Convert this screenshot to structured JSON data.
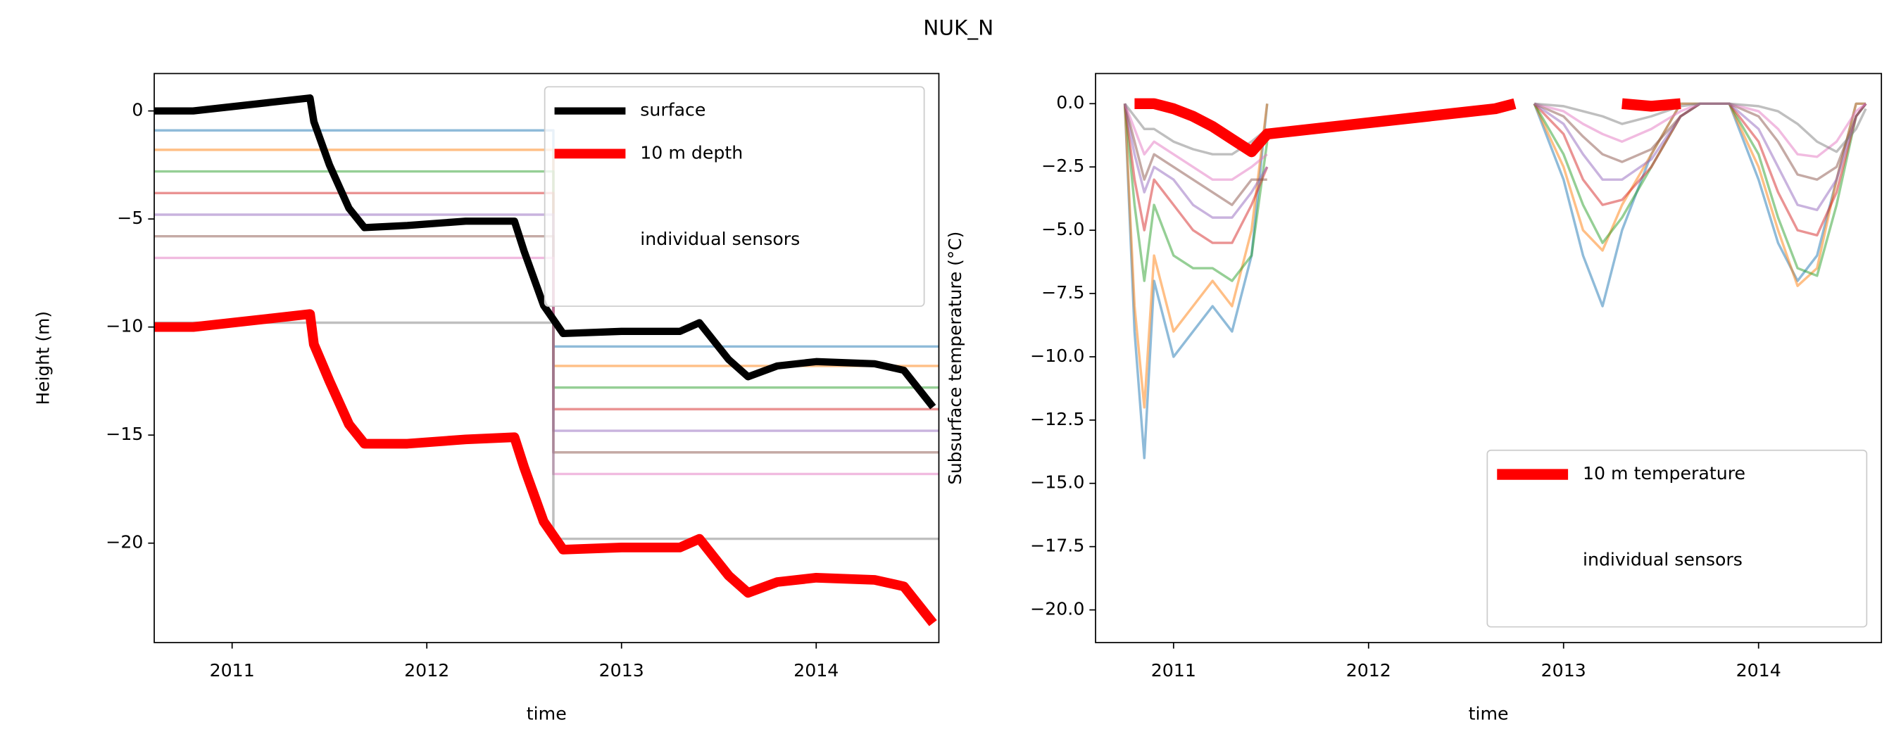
{
  "title": "NUK_N",
  "chart_data": [
    {
      "type": "line",
      "xlabel": "time",
      "ylabel": "Height (m)",
      "xlim": [
        2010.6,
        2014.63
      ],
      "ylim": [
        -24.6,
        1.73
      ],
      "xticks": [
        2011,
        2012,
        2013,
        2014
      ],
      "yticks": [
        {
          "value": 0,
          "label": "0"
        },
        {
          "value": -5,
          "label": "−5"
        },
        {
          "value": -10,
          "label": "−10"
        },
        {
          "value": -15,
          "label": "−15"
        },
        {
          "value": -20,
          "label": "−20"
        }
      ],
      "legend": "upper right",
      "sensors_label": "individual sensors",
      "sensors": [
        {
          "color": "#1f77b4",
          "x": [
            2010.6,
            2012.65,
            2012.65,
            2014.63
          ],
          "values": [
            -0.9,
            -0.9,
            -10.9,
            -10.9
          ]
        },
        {
          "color": "#ff7f0e",
          "x": [
            2010.6,
            2012.65,
            2012.65,
            2014.63
          ],
          "values": [
            -1.8,
            -1.8,
            -11.8,
            -11.8
          ]
        },
        {
          "color": "#2ca02c",
          "x": [
            2010.6,
            2012.65,
            2012.65,
            2014.63
          ],
          "values": [
            -2.8,
            -2.8,
            -12.8,
            -12.8
          ]
        },
        {
          "color": "#d62728",
          "x": [
            2010.6,
            2012.65,
            2012.65,
            2014.63
          ],
          "values": [
            -3.8,
            -3.8,
            -13.8,
            -13.8
          ]
        },
        {
          "color": "#9467bd",
          "x": [
            2010.6,
            2012.65,
            2012.65,
            2014.63
          ],
          "values": [
            -4.8,
            -4.8,
            -14.8,
            -14.8
          ]
        },
        {
          "color": "#8c564b",
          "x": [
            2010.6,
            2012.65,
            2012.65,
            2014.63
          ],
          "values": [
            -5.8,
            -5.8,
            -15.8,
            -15.8
          ]
        },
        {
          "color": "#e377c2",
          "x": [
            2010.6,
            2012.65,
            2012.65,
            2014.63
          ],
          "values": [
            -6.8,
            -6.8,
            -16.8,
            -16.8
          ]
        },
        {
          "color": "#7f7f7f",
          "x": [
            2010.6,
            2012.65,
            2012.65,
            2014.63
          ],
          "values": [
            -9.8,
            -9.8,
            -19.8,
            -19.8
          ]
        }
      ],
      "series": [
        {
          "name": "surface",
          "color": "#000000",
          "x": [
            2010.6,
            2010.8,
            2011.0,
            2011.2,
            2011.4,
            2011.42,
            2011.5,
            2011.6,
            2011.68,
            2011.9,
            2012.2,
            2012.45,
            2012.5,
            2012.6,
            2012.7,
            2013.0,
            2013.3,
            2013.4,
            2013.55,
            2013.65,
            2013.8,
            2014.0,
            2014.3,
            2014.45,
            2014.6
          ],
          "values": [
            0,
            0,
            0.2,
            0.4,
            0.6,
            -0.5,
            -2.5,
            -4.5,
            -5.4,
            -5.3,
            -5.1,
            -5.1,
            -6.5,
            -9,
            -10.3,
            -10.2,
            -10.2,
            -9.8,
            -11.5,
            -12.3,
            -11.8,
            -11.6,
            -11.7,
            -12,
            -13.7
          ]
        },
        {
          "name": "10 m depth",
          "color": "#ff0000",
          "x": [
            2010.6,
            2010.8,
            2011.0,
            2011.2,
            2011.4,
            2011.42,
            2011.5,
            2011.6,
            2011.68,
            2011.9,
            2012.2,
            2012.45,
            2012.5,
            2012.6,
            2012.7,
            2013.0,
            2013.3,
            2013.4,
            2013.55,
            2013.65,
            2013.8,
            2014.0,
            2014.3,
            2014.45,
            2014.6
          ],
          "values": [
            -10,
            -10,
            -9.8,
            -9.6,
            -9.4,
            -10.8,
            -12.5,
            -14.5,
            -15.4,
            -15.4,
            -15.2,
            -15.1,
            -16.5,
            -19,
            -20.3,
            -20.2,
            -20.2,
            -19.8,
            -21.5,
            -22.3,
            -21.8,
            -21.6,
            -21.7,
            -22,
            -23.7
          ]
        }
      ]
    },
    {
      "type": "line",
      "xlabel": "time",
      "ylabel": "Subsurface temperature (°C)",
      "xlim": [
        2010.6,
        2014.63
      ],
      "ylim": [
        -21.29,
        1.19
      ],
      "xticks": [
        2011,
        2012,
        2013,
        2014
      ],
      "yticks": [
        {
          "value": 0,
          "label": "0.0"
        },
        {
          "value": -2.5,
          "label": "−2.5"
        },
        {
          "value": -5,
          "label": "−5.0"
        },
        {
          "value": -7.5,
          "label": "−7.5"
        },
        {
          "value": -10,
          "label": "−10.0"
        },
        {
          "value": -12.5,
          "label": "−12.5"
        },
        {
          "value": -15,
          "label": "−15.0"
        },
        {
          "value": -17.5,
          "label": "−17.5"
        },
        {
          "value": -20,
          "label": "−20.0"
        }
      ],
      "legend": "lower right",
      "sensors_label": "individual sensors",
      "x": [
        2010.75,
        2010.8,
        2010.85,
        2010.9,
        2011.0,
        2011.1,
        2011.2,
        2011.3,
        2011.4,
        2011.48,
        2012.65,
        2012.75,
        2012.85,
        2013.0,
        2013.1,
        2013.2,
        2013.3,
        2013.45,
        2013.6,
        2013.7,
        2013.85,
        2014.0,
        2014.1,
        2014.2,
        2014.3,
        2014.4,
        2014.5,
        2014.55
      ],
      "sensors": [
        {
          "color": "#1f77b4",
          "values": [
            0,
            -9,
            -14,
            -7,
            -10,
            -9,
            -8,
            -9,
            -6,
            0,
            null,
            null,
            0,
            -3,
            -6,
            -8,
            -5,
            -2,
            0,
            0,
            0,
            -3,
            -5.5,
            -7,
            -6,
            -3,
            0,
            0
          ]
        },
        {
          "color": "#ff7f0e",
          "values": [
            0,
            -8,
            -12,
            -6,
            -9,
            -8,
            -7,
            -8,
            -5,
            0,
            null,
            null,
            0,
            -2.5,
            -5,
            -5.8,
            -4,
            -2,
            0,
            0,
            0,
            -2.5,
            -5,
            -7.2,
            -6.5,
            -3,
            0,
            0
          ]
        },
        {
          "color": "#2ca02c",
          "values": [
            0,
            -4,
            -7,
            -4,
            -6,
            -6.5,
            -6.5,
            -7,
            -6,
            -1.5,
            null,
            null,
            0,
            -2,
            -4,
            -5.5,
            -4.5,
            -2.5,
            -0.5,
            0,
            0,
            -2,
            -4.5,
            -6.5,
            -6.8,
            -4,
            -0.5,
            0
          ]
        },
        {
          "color": "#d62728",
          "values": [
            0,
            -3,
            -5,
            -3,
            -4,
            -5,
            -5.5,
            -5.5,
            -4,
            -2.5,
            null,
            null,
            0,
            -1.2,
            -3,
            -4,
            -3.8,
            -2.5,
            -0.5,
            0,
            0,
            -1.5,
            -3.5,
            -5,
            -5.2,
            -3.5,
            -0.5,
            0
          ]
        },
        {
          "color": "#9467bd",
          "values": [
            0,
            -2,
            -3.5,
            -2.5,
            -3,
            -4,
            -4.5,
            -4.5,
            -3.5,
            -2.5,
            null,
            null,
            0,
            -0.8,
            -2,
            -3,
            -3,
            -2.2,
            -0.5,
            0,
            0,
            -1,
            -2.5,
            -4,
            -4.2,
            -3,
            -0.5,
            0
          ]
        },
        {
          "color": "#8c564b",
          "values": [
            0,
            -1.5,
            -3,
            -2,
            -2.5,
            -3,
            -3.5,
            -4,
            -3,
            -3,
            null,
            null,
            0,
            -0.5,
            -1.3,
            -2,
            -2.3,
            -1.8,
            -0.5,
            0,
            0,
            -0.5,
            -1.5,
            -2.8,
            -3,
            -2.5,
            -0.5,
            0
          ]
        },
        {
          "color": "#e377c2",
          "values": [
            0,
            -1,
            -2,
            -1.5,
            -2,
            -2.5,
            -3,
            -3,
            -2.5,
            -2,
            null,
            null,
            0,
            -0.3,
            -0.8,
            -1.2,
            -1.5,
            -1,
            -0.3,
            0,
            0,
            -0.3,
            -1,
            -2,
            -2.1,
            -1.5,
            -0.3,
            0
          ]
        },
        {
          "color": "#7f7f7f",
          "values": [
            0,
            -0.5,
            -1,
            -1,
            -1.5,
            -1.8,
            -2,
            -2,
            -1.5,
            -1,
            null,
            null,
            0,
            -0.1,
            -0.3,
            -0.5,
            -0.8,
            -0.5,
            -0.1,
            0,
            0,
            -0.1,
            -0.3,
            -0.8,
            -1.5,
            -1.9,
            -1,
            -0.2
          ]
        }
      ],
      "series": [
        {
          "name": "10 m temperature",
          "color": "#ff0000",
          "values": [
            null,
            0,
            0,
            0,
            -0.2,
            -0.5,
            -0.9,
            -1.4,
            -1.9,
            -1.2,
            -0.2,
            0,
            null,
            null,
            null,
            null,
            0,
            -0.1,
            0,
            null,
            null,
            null,
            null,
            null,
            null,
            null,
            null,
            null
          ]
        }
      ]
    }
  ]
}
